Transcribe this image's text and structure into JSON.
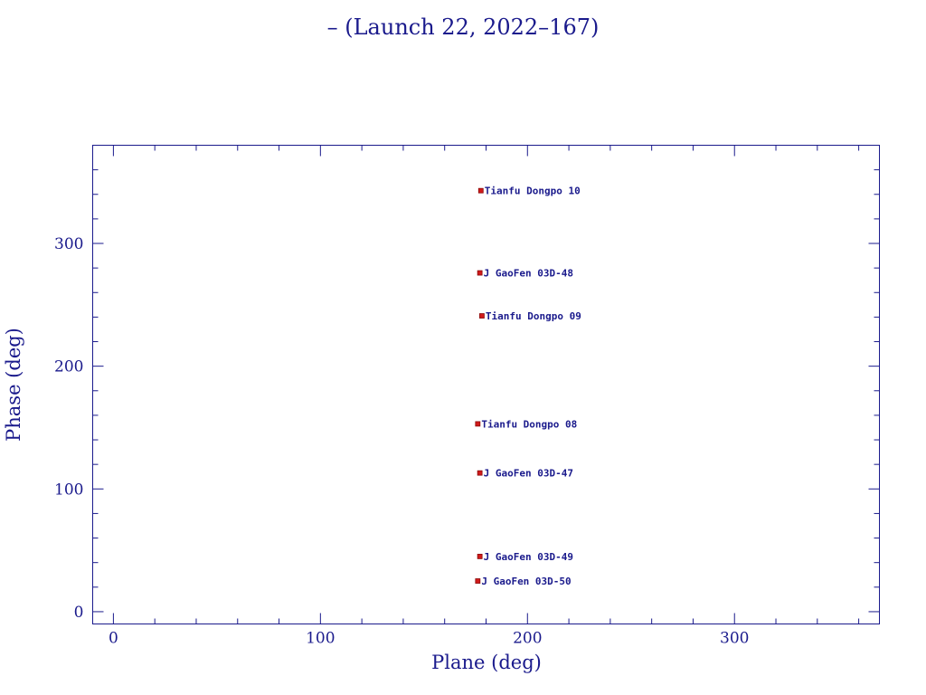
{
  "chart_data": {
    "type": "scatter",
    "title": "– (Launch 22, 2022–167)",
    "xlabel": "Plane (deg)",
    "ylabel": "Phase (deg)",
    "xlim": [
      -10,
      370
    ],
    "ylim": [
      -10,
      380
    ],
    "xticks": [
      0,
      100,
      200,
      300
    ],
    "yticks": [
      0,
      100,
      200,
      300
    ],
    "grid": false,
    "marker_color": "#d11a1a",
    "text_color": "#1a1a8c",
    "points": [
      {
        "x": 177.5,
        "y": 343,
        "label": "Tianfu Dongpo 10"
      },
      {
        "x": 177,
        "y": 276,
        "label": "J GaoFen 03D-48"
      },
      {
        "x": 178,
        "y": 241,
        "label": "Tianfu Dongpo 09"
      },
      {
        "x": 176,
        "y": 153,
        "label": "Tianfu Dongpo 08"
      },
      {
        "x": 177,
        "y": 113,
        "label": "J GaoFen 03D-47"
      },
      {
        "x": 177,
        "y": 45,
        "label": "J GaoFen 03D-49"
      },
      {
        "x": 176,
        "y": 25,
        "label": "J GaoFen 03D-50"
      }
    ]
  }
}
